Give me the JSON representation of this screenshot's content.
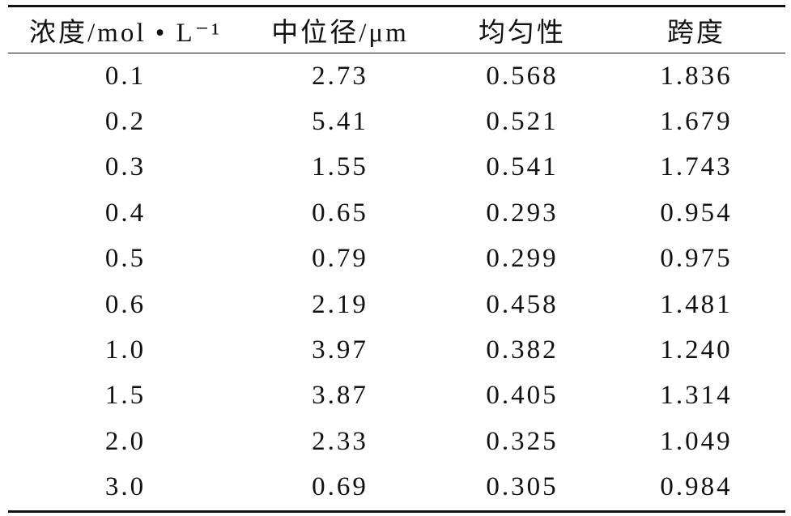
{
  "table": {
    "header": [
      "浓度/mol • L⁻¹",
      "中位径/μm",
      "均匀性",
      "跨度"
    ],
    "rows": [
      [
        "0.1",
        "2.73",
        "0.568",
        "1.836"
      ],
      [
        "0.2",
        "5.41",
        "0.521",
        "1.679"
      ],
      [
        "0.3",
        "1.55",
        "0.541",
        "1.743"
      ],
      [
        "0.4",
        "0.65",
        "0.293",
        "0.954"
      ],
      [
        "0.5",
        "0.79",
        "0.299",
        "0.975"
      ],
      [
        "0.6",
        "2.19",
        "0.458",
        "1.481"
      ],
      [
        "1.0",
        "3.97",
        "0.382",
        "1.240"
      ],
      [
        "1.5",
        "3.87",
        "0.405",
        "1.314"
      ],
      [
        "2.0",
        "2.33",
        "0.325",
        "1.049"
      ],
      [
        "3.0",
        "0.69",
        "0.305",
        "0.984"
      ]
    ]
  }
}
